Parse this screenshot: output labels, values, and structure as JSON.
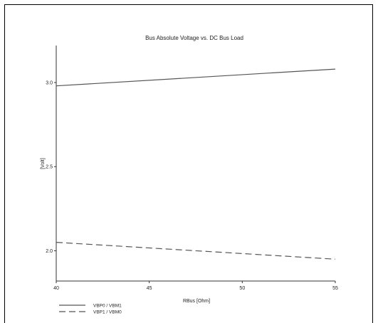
{
  "chart_data": {
    "type": "line",
    "title": "Bus Absolute Voltage vs. DC Bus Load",
    "xlabel": "RBus [Ohm]",
    "ylabel": "[Volt]",
    "xlim": [
      40,
      55
    ],
    "ylim": [
      1.82,
      3.22
    ],
    "x_ticks": [
      40,
      45,
      50,
      55
    ],
    "x_tick_labels": [
      "40",
      "45",
      "50",
      "55"
    ],
    "y_ticks": [
      2.0,
      2.5,
      3.0
    ],
    "y_tick_labels": [
      "2.0",
      "2.5",
      "3.0"
    ],
    "grid": false,
    "legend_position": "bottom-left",
    "series": [
      {
        "name": "VBP0 / VBM1",
        "style": "solid",
        "color": "#555555",
        "x": [
          40,
          55
        ],
        "y": [
          2.98,
          3.08
        ]
      },
      {
        "name": "VBP1 / VBM0",
        "style": "dashed",
        "color": "#555555",
        "x": [
          40,
          55
        ],
        "y": [
          2.05,
          1.95
        ]
      }
    ]
  }
}
